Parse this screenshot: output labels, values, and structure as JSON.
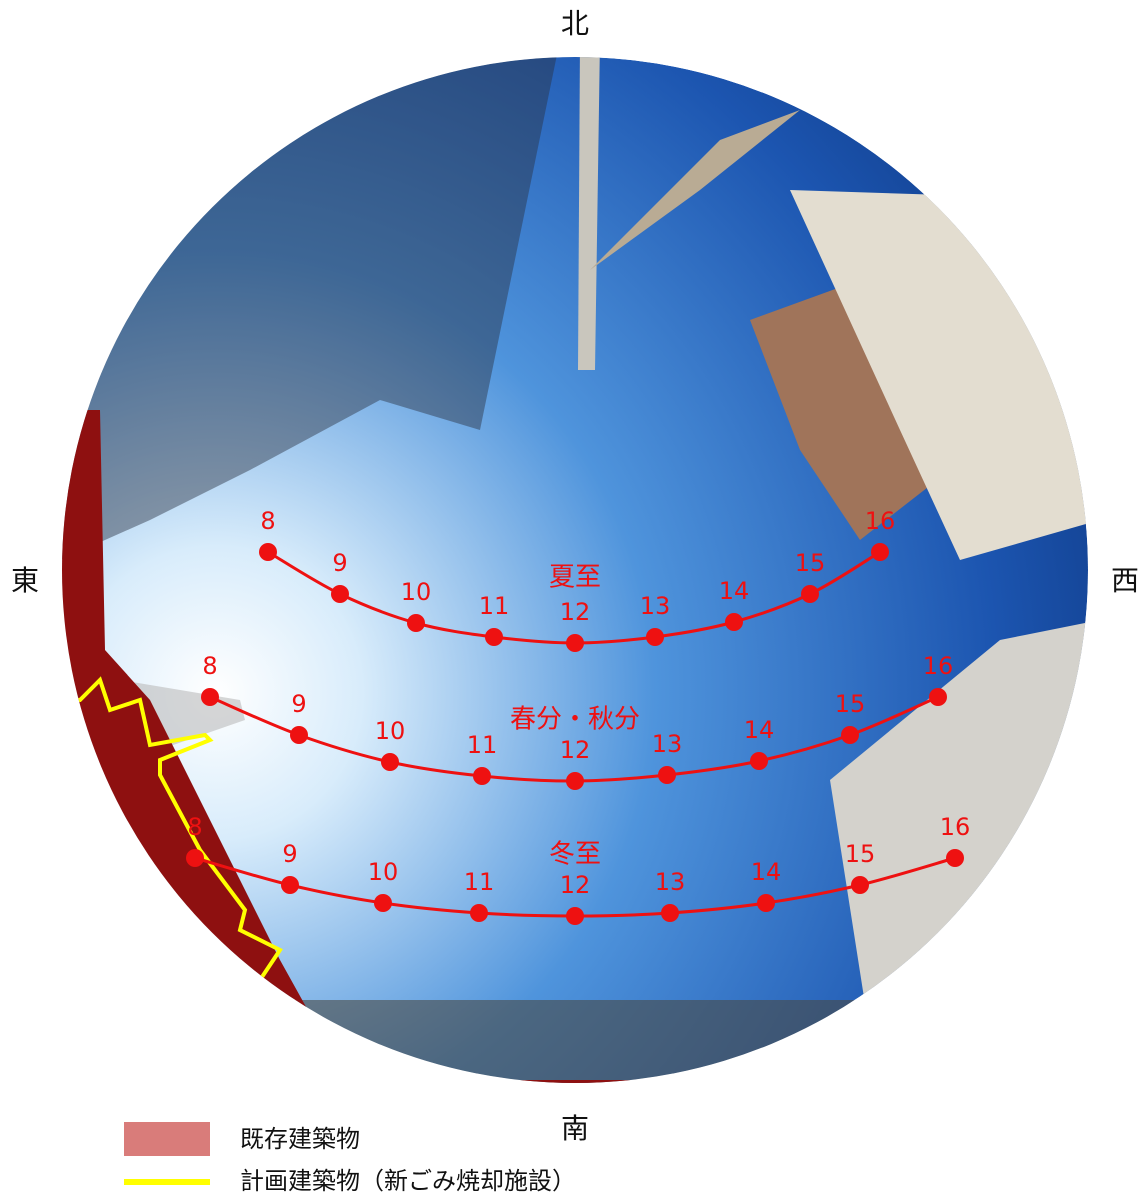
{
  "compass": {
    "north": "北",
    "south": "南",
    "east": "東",
    "west": "西"
  },
  "paths": [
    {
      "label": "夏至",
      "hours": [
        "8",
        "9",
        "10",
        "11",
        "12",
        "13",
        "14",
        "15",
        "16"
      ]
    },
    {
      "label": "春分・秋分",
      "hours": [
        "8",
        "9",
        "10",
        "11",
        "12",
        "13",
        "14",
        "15",
        "16"
      ]
    },
    {
      "label": "冬至",
      "hours": [
        "8",
        "9",
        "10",
        "11",
        "12",
        "13",
        "14",
        "15",
        "16"
      ]
    }
  ],
  "legend": [
    {
      "label": "既存建築物"
    },
    {
      "label": "計画建築物（新ごみ焼却施設）"
    }
  ]
}
